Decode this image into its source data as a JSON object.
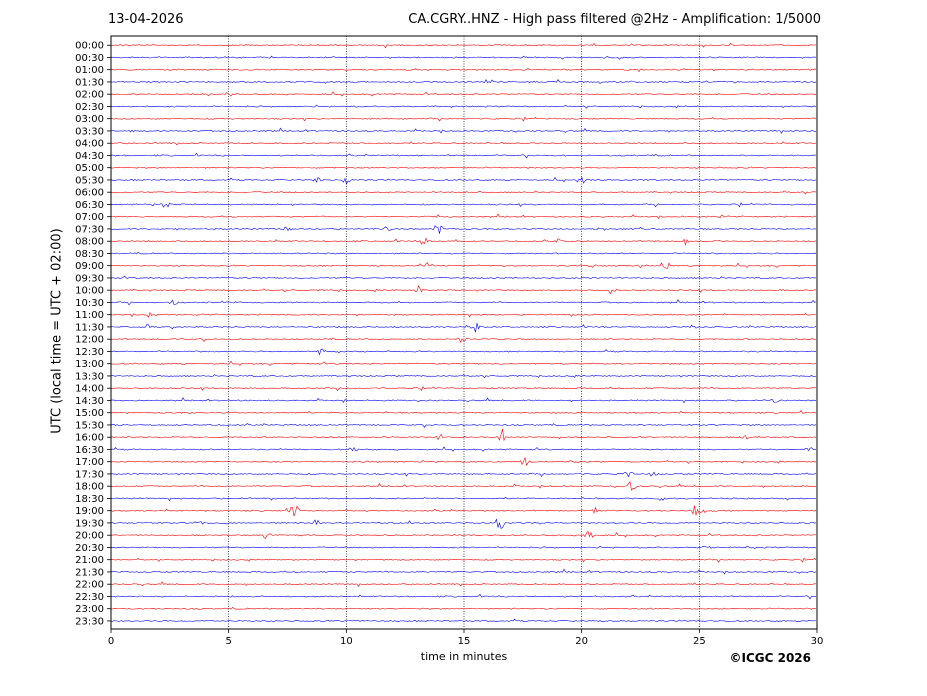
{
  "header": {
    "date": "13-04-2026",
    "title": "CA.CGRY..HNZ - High pass filtered @2Hz - Amplification: 1/5000"
  },
  "footer": {
    "copyright": "©ICGC 2026"
  },
  "chart_data": {
    "type": "line",
    "ylabel": "UTC (local time = UTC + 02:00)",
    "xlabel": "time in minutes",
    "xlim": [
      0,
      30
    ],
    "x_ticks": [
      0,
      5,
      10,
      15,
      20,
      25,
      30
    ],
    "y_ticks": [
      "00:00",
      "00:30",
      "01:00",
      "01:30",
      "02:00",
      "02:30",
      "03:00",
      "03:30",
      "04:00",
      "04:30",
      "05:00",
      "05:30",
      "06:00",
      "06:30",
      "07:00",
      "07:30",
      "08:00",
      "08:30",
      "09:00",
      "09:30",
      "10:00",
      "10:30",
      "11:00",
      "11:30",
      "12:00",
      "12:30",
      "13:00",
      "13:30",
      "14:00",
      "14:30",
      "15:00",
      "15:30",
      "16:00",
      "16:30",
      "17:00",
      "17:30",
      "18:00",
      "18:30",
      "19:00",
      "19:30",
      "20:00",
      "20:30",
      "21:00",
      "21:30",
      "22:00",
      "22:30",
      "23:00",
      "23:30"
    ],
    "trace_colors": [
      "#ff0000",
      "#0000ff"
    ],
    "grid": "vertical dotted at x ticks",
    "events": [
      {
        "row": "03:30",
        "minute": 1.0,
        "amp": 0.25
      },
      {
        "row": "05:30",
        "minute": 8.8,
        "amp": 0.3
      },
      {
        "row": "05:30",
        "minute": 10.0,
        "amp": 0.6
      },
      {
        "row": "05:30",
        "minute": 20.0,
        "amp": 0.6
      },
      {
        "row": "06:30",
        "minute": 2.3,
        "amp": 0.3
      },
      {
        "row": "07:00",
        "minute": 13.9,
        "amp": 0.2
      },
      {
        "row": "07:00",
        "minute": 26.0,
        "amp": 0.2
      },
      {
        "row": "07:30",
        "minute": 7.5,
        "amp": 0.3
      },
      {
        "row": "07:30",
        "minute": 11.7,
        "amp": 0.3
      },
      {
        "row": "07:30",
        "minute": 13.9,
        "amp": 0.55
      },
      {
        "row": "07:30",
        "minute": 20.8,
        "amp": 0.3
      },
      {
        "row": "08:00",
        "minute": 13.3,
        "amp": 0.35
      },
      {
        "row": "08:00",
        "minute": 19.0,
        "amp": 0.2
      },
      {
        "row": "08:00",
        "minute": 24.4,
        "amp": 0.35
      },
      {
        "row": "09:00",
        "minute": 13.5,
        "amp": 0.3
      },
      {
        "row": "09:00",
        "minute": 20.5,
        "amp": 0.35
      },
      {
        "row": "09:00",
        "minute": 23.6,
        "amp": 0.3
      },
      {
        "row": "10:00",
        "minute": 13.1,
        "amp": 0.4
      },
      {
        "row": "10:00",
        "minute": 21.3,
        "amp": 0.3
      },
      {
        "row": "10:30",
        "minute": 2.7,
        "amp": 0.35
      },
      {
        "row": "11:00",
        "minute": 1.7,
        "amp": 0.6
      },
      {
        "row": "11:30",
        "minute": 1.5,
        "amp": 0.3
      },
      {
        "row": "11:30",
        "minute": 15.5,
        "amp": 0.55
      },
      {
        "row": "11:30",
        "minute": 24.7,
        "amp": 0.3
      },
      {
        "row": "12:00",
        "minute": 14.9,
        "amp": 0.25
      },
      {
        "row": "12:30",
        "minute": 8.9,
        "amp": 0.4
      },
      {
        "row": "14:30",
        "minute": 28.2,
        "amp": 0.35
      },
      {
        "row": "16:00",
        "minute": 14.0,
        "amp": 0.35
      },
      {
        "row": "16:00",
        "minute": 16.6,
        "amp": 1.3
      },
      {
        "row": "16:00",
        "minute": 27.0,
        "amp": 0.3
      },
      {
        "row": "16:30",
        "minute": 10.3,
        "amp": 0.3
      },
      {
        "row": "16:30",
        "minute": 29.7,
        "amp": 0.4
      },
      {
        "row": "17:00",
        "minute": 17.6,
        "amp": 0.6
      },
      {
        "row": "17:30",
        "minute": 22.0,
        "amp": 0.4
      },
      {
        "row": "17:30",
        "minute": 23.0,
        "amp": 0.3
      },
      {
        "row": "18:00",
        "minute": 22.1,
        "amp": 0.6
      },
      {
        "row": "18:30",
        "minute": 23.4,
        "amp": 0.4
      },
      {
        "row": "19:00",
        "minute": 7.8,
        "amp": 0.9
      },
      {
        "row": "19:00",
        "minute": 20.6,
        "amp": 0.4
      },
      {
        "row": "19:00",
        "minute": 24.8,
        "amp": 0.6
      },
      {
        "row": "19:00",
        "minute": 25.2,
        "amp": 0.35
      },
      {
        "row": "19:30",
        "minute": 3.7,
        "amp": 0.3
      },
      {
        "row": "19:30",
        "minute": 8.7,
        "amp": 0.3
      },
      {
        "row": "19:30",
        "minute": 16.5,
        "amp": 1.0
      },
      {
        "row": "20:00",
        "minute": 6.6,
        "amp": 0.4
      },
      {
        "row": "20:00",
        "minute": 20.3,
        "amp": 0.8
      },
      {
        "row": "20:30",
        "minute": 25.3,
        "amp": 0.2
      }
    ]
  }
}
